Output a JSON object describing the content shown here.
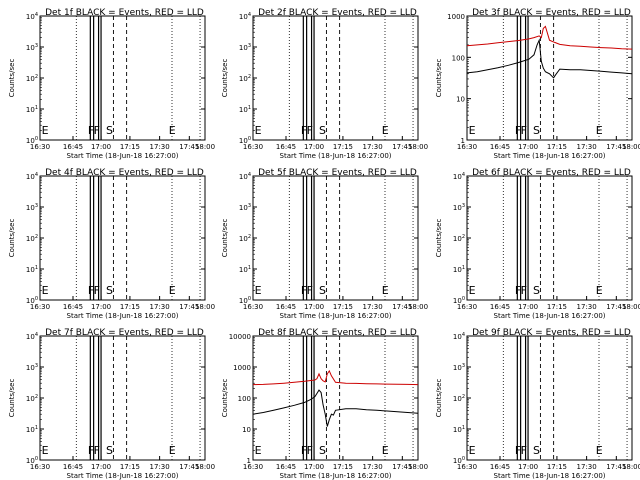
{
  "figure": {
    "xlabel": "Start Time (18-Jun-18 16:27:00)",
    "ylabel": "Counts/sec"
  },
  "chart_data": [
    {
      "type": "line",
      "title": "Det 1f BLACK = Events, RED = LLD",
      "y_scale": "log",
      "ylim": [
        1,
        10000
      ],
      "y_ticks": [
        "10^0",
        "10^1",
        "10^2",
        "10^3",
        "10^4"
      ],
      "x_ticks": [
        "16:30",
        "16:45",
        "17:00",
        "17:15",
        "17:30",
        "17:45",
        "18:00"
      ],
      "markers": [
        "E",
        "F",
        "F",
        "S",
        "E"
      ],
      "series": []
    },
    {
      "type": "line",
      "title": "Det 2f BLACK = Events, RED = LLD",
      "y_scale": "log",
      "ylim": [
        1,
        10000
      ],
      "y_ticks": [
        "10^0",
        "10^1",
        "10^2",
        "10^3",
        "10^4"
      ],
      "x_ticks": [
        "16:30",
        "16:45",
        "17:00",
        "17:15",
        "17:30",
        "17:45",
        "18:00"
      ],
      "markers": [
        "E",
        "F",
        "F",
        "S",
        "E"
      ],
      "series": []
    },
    {
      "type": "line",
      "title": "Det 3f BLACK = Events, RED = LLD",
      "y_scale": "log",
      "ylim": [
        1,
        1000
      ],
      "y_ticks": [
        "1",
        "10",
        "100",
        "1000"
      ],
      "x_ticks": [
        "16:30",
        "16:45",
        "17:00",
        "17:15",
        "17:30",
        "17:45",
        "18:00"
      ],
      "markers": [
        "E",
        "F",
        "F",
        "S",
        "E"
      ],
      "series": [
        {
          "color": "#cc0000",
          "x": [
            0,
            10,
            20,
            30,
            40,
            50,
            60,
            65,
            70,
            72,
            74,
            76,
            80,
            85,
            90,
            100,
            110,
            120,
            130,
            140,
            150,
            160
          ],
          "y": [
            190,
            200,
            210,
            225,
            240,
            255,
            280,
            300,
            330,
            300,
            500,
            560,
            260,
            230,
            205,
            190,
            185,
            178,
            172,
            168,
            162,
            158
          ]
        },
        {
          "color": "#000000",
          "x": [
            0,
            10,
            20,
            30,
            40,
            50,
            60,
            65,
            68,
            70,
            72,
            74,
            76,
            80,
            84,
            86,
            90,
            100,
            110,
            120,
            130,
            140,
            150,
            160
          ],
          "y": [
            42,
            45,
            50,
            56,
            64,
            75,
            90,
            115,
            200,
            260,
            80,
            55,
            45,
            40,
            32,
            38,
            52,
            50,
            50,
            48,
            46,
            44,
            42,
            40
          ]
        }
      ]
    },
    {
      "type": "line",
      "title": "Det 4f BLACK = Events, RED = LLD",
      "y_scale": "log",
      "ylim": [
        1,
        10000
      ],
      "y_ticks": [
        "10^0",
        "10^1",
        "10^2",
        "10^3",
        "10^4"
      ],
      "x_ticks": [
        "16:30",
        "16:45",
        "17:00",
        "17:15",
        "17:30",
        "17:45",
        "18:00"
      ],
      "markers": [
        "E",
        "F",
        "F",
        "S",
        "E"
      ],
      "series": []
    },
    {
      "type": "line",
      "title": "Det 5f BLACK = Events, RED = LLD",
      "y_scale": "log",
      "ylim": [
        1,
        10000
      ],
      "y_ticks": [
        "10^0",
        "10^1",
        "10^2",
        "10^3",
        "10^4"
      ],
      "x_ticks": [
        "16:30",
        "16:45",
        "17:00",
        "17:15",
        "17:30",
        "17:45",
        "18:00"
      ],
      "markers": [
        "E",
        "F",
        "F",
        "S",
        "E"
      ],
      "series": []
    },
    {
      "type": "line",
      "title": "Det 6f BLACK = Events, RED = LLD",
      "y_scale": "log",
      "ylim": [
        1,
        10000
      ],
      "y_ticks": [
        "10^0",
        "10^1",
        "10^2",
        "10^3",
        "10^4"
      ],
      "x_ticks": [
        "16:30",
        "16:45",
        "17:00",
        "17:15",
        "17:30",
        "17:45",
        "18:00"
      ],
      "markers": [
        "E",
        "F",
        "F",
        "S",
        "E"
      ],
      "series": []
    },
    {
      "type": "line",
      "title": "Det 7f BLACK = Events, RED = LLD",
      "y_scale": "log",
      "ylim": [
        1,
        10000
      ],
      "y_ticks": [
        "10^0",
        "10^1",
        "10^2",
        "10^3",
        "10^4"
      ],
      "x_ticks": [
        "16:30",
        "16:45",
        "17:00",
        "17:15",
        "17:30",
        "17:45",
        "18:00"
      ],
      "markers": [
        "E",
        "F",
        "F",
        "S",
        "E"
      ],
      "series": []
    },
    {
      "type": "line",
      "title": "Det 8f BLACK = Events, RED = LLD",
      "y_scale": "log",
      "ylim": [
        1,
        10000
      ],
      "y_ticks": [
        "1",
        "10",
        "100",
        "1000",
        "10000"
      ],
      "x_ticks": [
        "16:30",
        "16:45",
        "17:00",
        "17:15",
        "17:30",
        "17:45",
        "18:00"
      ],
      "markers": [
        "E",
        "F",
        "F",
        "S",
        "E"
      ],
      "series": [
        {
          "color": "#cc0000",
          "x": [
            0,
            10,
            20,
            30,
            40,
            50,
            60,
            62,
            64,
            66,
            68,
            70,
            72,
            74,
            76,
            80,
            90,
            100,
            110,
            120,
            130,
            140,
            150,
            160
          ],
          "y": [
            270,
            275,
            285,
            300,
            320,
            345,
            380,
            420,
            600,
            420,
            360,
            330,
            600,
            750,
            520,
            320,
            300,
            295,
            290,
            285,
            280,
            278,
            275,
            270
          ]
        },
        {
          "color": "#000000",
          "x": [
            0,
            10,
            20,
            30,
            40,
            50,
            56,
            60,
            62,
            64,
            66,
            68,
            70,
            72,
            74,
            76,
            78,
            80,
            90,
            100,
            110,
            120,
            130,
            140,
            150,
            160
          ],
          "y": [
            30,
            34,
            40,
            48,
            58,
            72,
            90,
            110,
            140,
            180,
            150,
            60,
            30,
            12,
            20,
            30,
            28,
            40,
            45,
            45,
            42,
            40,
            38,
            36,
            34,
            32
          ]
        }
      ]
    },
    {
      "type": "line",
      "title": "Det 9f BLACK = Events, RED = LLD",
      "y_scale": "log",
      "ylim": [
        1,
        10000
      ],
      "y_ticks": [
        "10^0",
        "10^1",
        "10^2",
        "10^3",
        "10^4"
      ],
      "x_ticks": [
        "16:30",
        "16:45",
        "17:00",
        "17:15",
        "17:30",
        "17:45",
        "18:00"
      ],
      "markers": [
        "E",
        "F",
        "F",
        "S",
        "E"
      ],
      "series": []
    }
  ]
}
